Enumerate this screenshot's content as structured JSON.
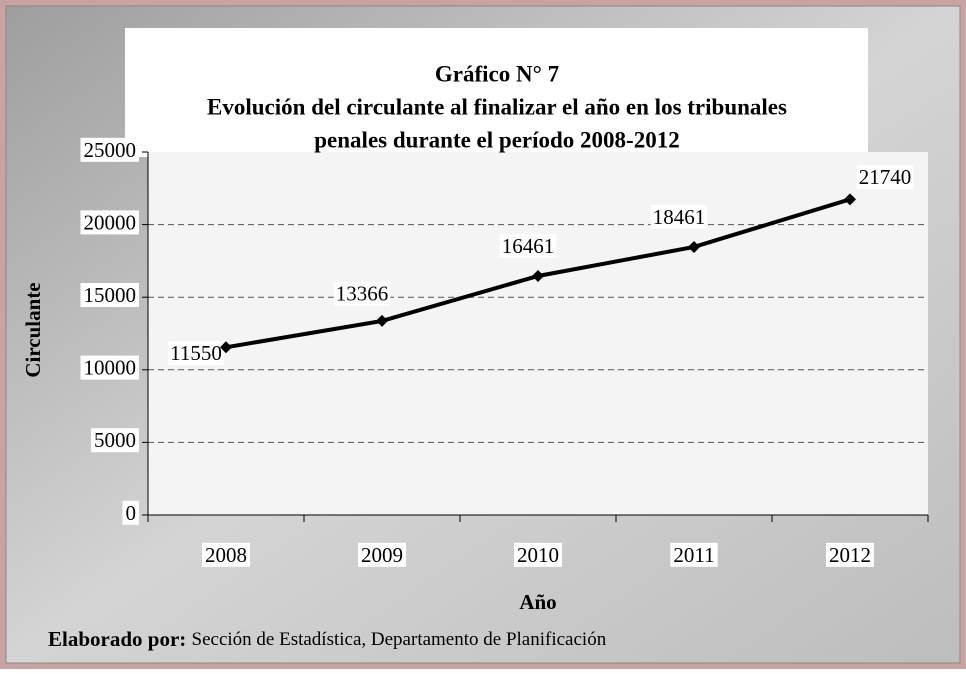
{
  "chart_data": {
    "type": "line",
    "title": [
      "Gráfico N° 7",
      "Evolución del circulante al finalizar el año en los tribunales",
      "penales durante el período 2008-2012"
    ],
    "x_label": "Año",
    "y_label": "Circulante",
    "categories": [
      "2008",
      "2009",
      "2010",
      "2011",
      "2012"
    ],
    "series": [
      {
        "name": "Circulante",
        "color": "#000000",
        "values": [
          11550,
          13366,
          16461,
          18461,
          21740
        ]
      }
    ],
    "ylim": [
      0,
      25000
    ],
    "yticks": [
      0,
      5000,
      10000,
      15000,
      20000,
      25000
    ],
    "grid": true,
    "source_label": "Elaborado por:",
    "source": "Sección de Estadística, Departamento de Planificación"
  }
}
